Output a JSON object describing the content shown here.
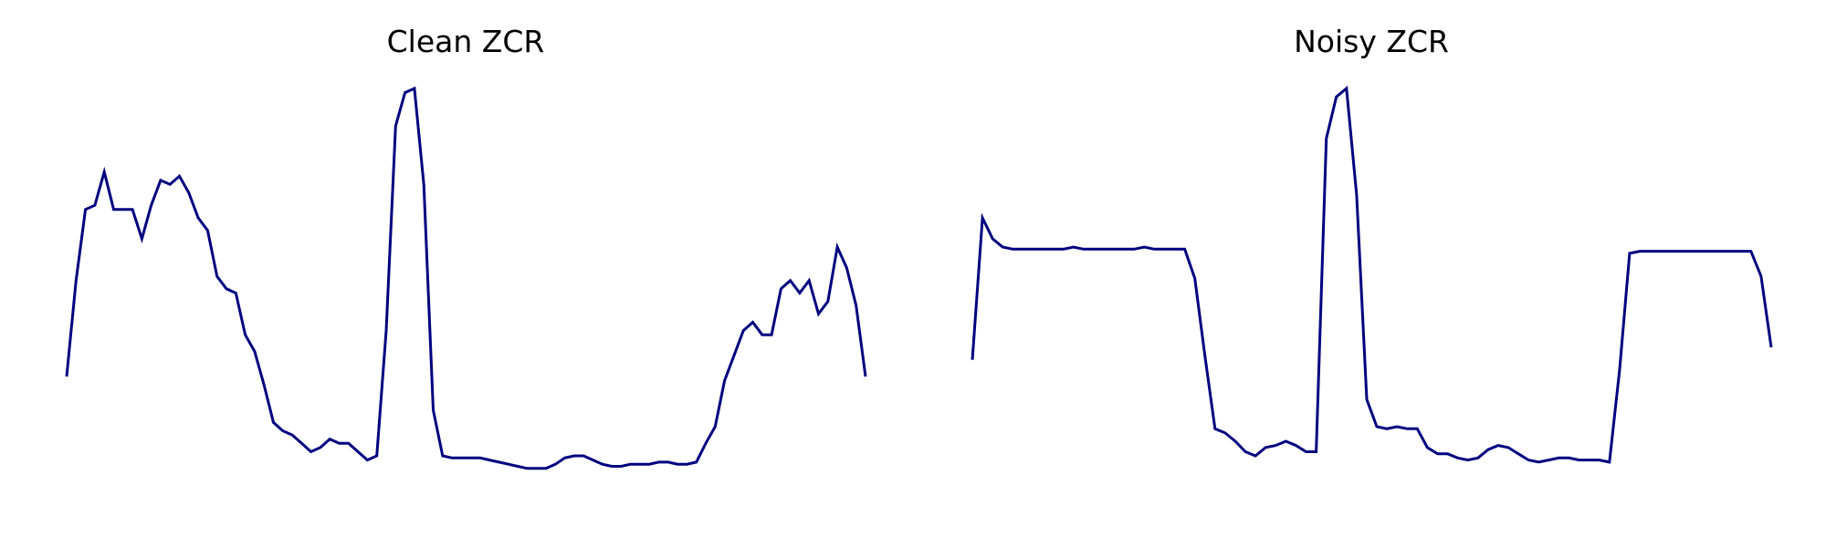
{
  "chart_data": [
    {
      "type": "line",
      "title": "Clean ZCR",
      "axes_visible": false,
      "grid": false,
      "ylim": [
        0,
        1
      ],
      "color": "#000080",
      "series": [
        {
          "values": [
            0.31,
            0.54,
            0.71,
            0.72,
            0.8,
            0.71,
            0.71,
            0.71,
            0.64,
            0.72,
            0.78,
            0.77,
            0.79,
            0.75,
            0.69,
            0.66,
            0.55,
            0.52,
            0.51,
            0.41,
            0.37,
            0.29,
            0.2,
            0.18,
            0.17,
            0.15,
            0.13,
            0.14,
            0.16,
            0.15,
            0.15,
            0.13,
            0.11,
            0.12,
            0.42,
            0.91,
            0.99,
            1.0,
            0.77,
            0.23,
            0.12,
            0.115,
            0.115,
            0.115,
            0.115,
            0.11,
            0.105,
            0.1,
            0.095,
            0.09,
            0.09,
            0.09,
            0.1,
            0.115,
            0.12,
            0.12,
            0.11,
            0.1,
            0.095,
            0.095,
            0.1,
            0.1,
            0.1,
            0.105,
            0.105,
            0.1,
            0.1,
            0.105,
            0.15,
            0.19,
            0.3,
            0.36,
            0.42,
            0.44,
            0.41,
            0.41,
            0.52,
            0.54,
            0.51,
            0.54,
            0.46,
            0.49,
            0.62,
            0.57,
            0.48,
            0.31
          ]
        }
      ]
    },
    {
      "type": "line",
      "title": "Noisy ZCR",
      "axes_visible": false,
      "grid": false,
      "ylim": [
        0,
        1
      ],
      "color": "#000080",
      "series": [
        {
          "values": [
            0.35,
            0.69,
            0.64,
            0.62,
            0.615,
            0.615,
            0.615,
            0.615,
            0.615,
            0.615,
            0.62,
            0.615,
            0.615,
            0.615,
            0.615,
            0.615,
            0.615,
            0.62,
            0.615,
            0.615,
            0.615,
            0.615,
            0.545,
            0.36,
            0.185,
            0.175,
            0.155,
            0.13,
            0.12,
            0.14,
            0.145,
            0.155,
            0.145,
            0.13,
            0.13,
            0.88,
            0.98,
            1.0,
            0.745,
            0.255,
            0.19,
            0.185,
            0.19,
            0.185,
            0.185,
            0.14,
            0.125,
            0.125,
            0.115,
            0.11,
            0.115,
            0.135,
            0.145,
            0.14,
            0.125,
            0.11,
            0.105,
            0.11,
            0.115,
            0.115,
            0.11,
            0.11,
            0.11,
            0.105,
            0.325,
            0.605,
            0.61,
            0.61,
            0.61,
            0.61,
            0.61,
            0.61,
            0.61,
            0.61,
            0.61,
            0.61,
            0.61,
            0.61,
            0.55,
            0.38
          ]
        }
      ]
    }
  ]
}
